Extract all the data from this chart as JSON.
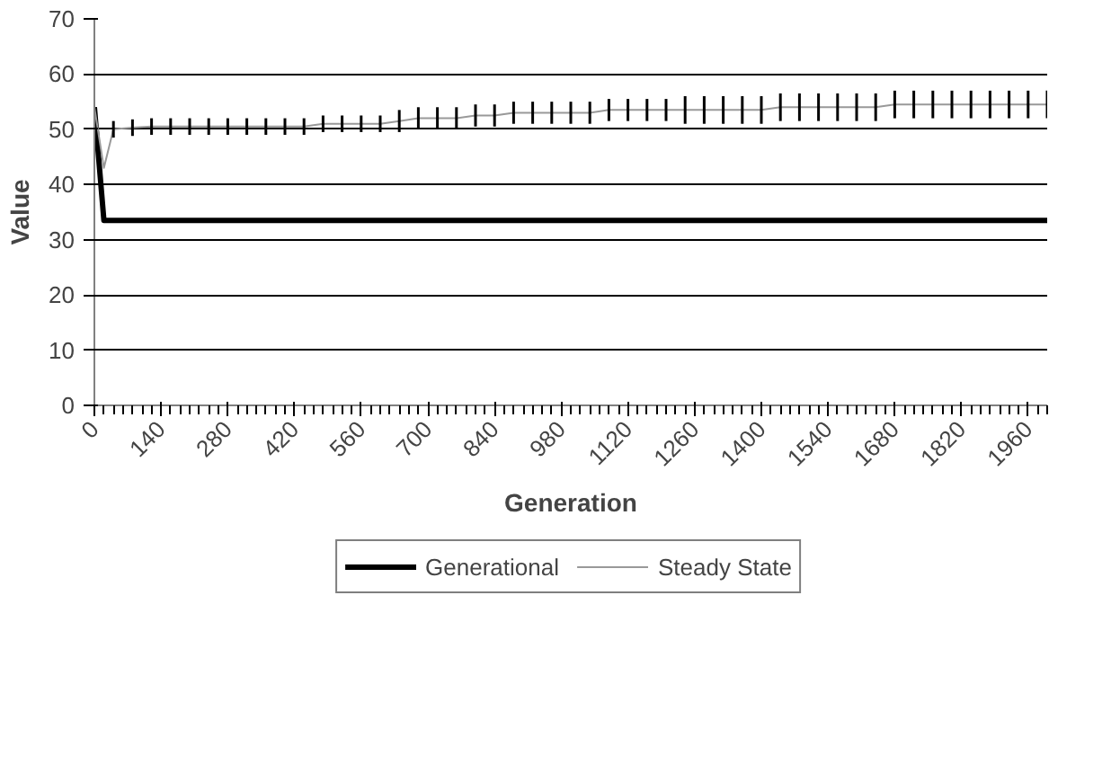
{
  "chart_data": {
    "type": "line",
    "xlabel": "Generation",
    "ylabel": "Value",
    "x": [
      0,
      20,
      40,
      80,
      120,
      160,
      200,
      240,
      280,
      320,
      360,
      400,
      440,
      480,
      520,
      560,
      600,
      640,
      680,
      720,
      760,
      800,
      840,
      880,
      920,
      960,
      1000,
      1040,
      1080,
      1120,
      1160,
      1200,
      1240,
      1280,
      1320,
      1360,
      1400,
      1440,
      1480,
      1520,
      1560,
      1600,
      1640,
      1680,
      1720,
      1760,
      1800,
      1840,
      1880,
      1920,
      1960,
      2000
    ],
    "series": [
      {
        "name": "Generational",
        "color": "#000000",
        "values": [
          54,
          33.5,
          33.5,
          33.5,
          33.5,
          33.5,
          33.5,
          33.5,
          33.5,
          33.5,
          33.5,
          33.5,
          33.5,
          33.5,
          33.5,
          33.5,
          33.5,
          33.5,
          33.5,
          33.5,
          33.5,
          33.5,
          33.5,
          33.5,
          33.5,
          33.5,
          33.5,
          33.5,
          33.5,
          33.5,
          33.5,
          33.5,
          33.5,
          33.5,
          33.5,
          33.5,
          33.5,
          33.5,
          33.5,
          33.5,
          33.5,
          33.5,
          33.5,
          33.5,
          33.5,
          33.5,
          33.5,
          33.5,
          33.5,
          33.5,
          33.5,
          33.5
        ]
      },
      {
        "name": "Steady State",
        "color": "#999999",
        "values": [
          54,
          43,
          50,
          50.3,
          50.5,
          50.5,
          50.5,
          50.5,
          50.5,
          50.5,
          50.5,
          50.5,
          50.5,
          51,
          51,
          51,
          51,
          51.5,
          52,
          52,
          52,
          52.5,
          52.5,
          53,
          53,
          53,
          53,
          53,
          53.5,
          53.5,
          53.5,
          53.5,
          53.5,
          53.5,
          53.5,
          53.5,
          53.5,
          54,
          54,
          54,
          54,
          54,
          54,
          54.5,
          54.5,
          54.5,
          54.5,
          54.5,
          54.5,
          54.5,
          54.5,
          54.5
        ],
        "errors": [
          null,
          null,
          1.5,
          1.5,
          1.5,
          1.5,
          1.5,
          1.5,
          1.5,
          1.5,
          1.5,
          1.5,
          1.5,
          1.5,
          1.5,
          1.5,
          1.5,
          2,
          2,
          2,
          2,
          2,
          2,
          2,
          2,
          2,
          2,
          2,
          2,
          2,
          2,
          2,
          2.5,
          2.5,
          2.5,
          2.5,
          2.5,
          2.5,
          2.5,
          2.5,
          2.5,
          2.5,
          2.5,
          2.5,
          2.5,
          2.5,
          2.5,
          2.5,
          2.5,
          2.5,
          2.5,
          2.5
        ]
      }
    ],
    "xlim": [
      0,
      2000
    ],
    "xticks": [
      0,
      140,
      280,
      420,
      560,
      700,
      840,
      980,
      1120,
      1260,
      1400,
      1540,
      1680,
      1820,
      1960
    ],
    "ylim": [
      0,
      70
    ],
    "yticks": [
      0,
      10,
      20,
      30,
      40,
      50,
      60,
      70
    ],
    "grid": "y",
    "legend": "bottom",
    "marker": "none",
    "line_style": "solid"
  }
}
